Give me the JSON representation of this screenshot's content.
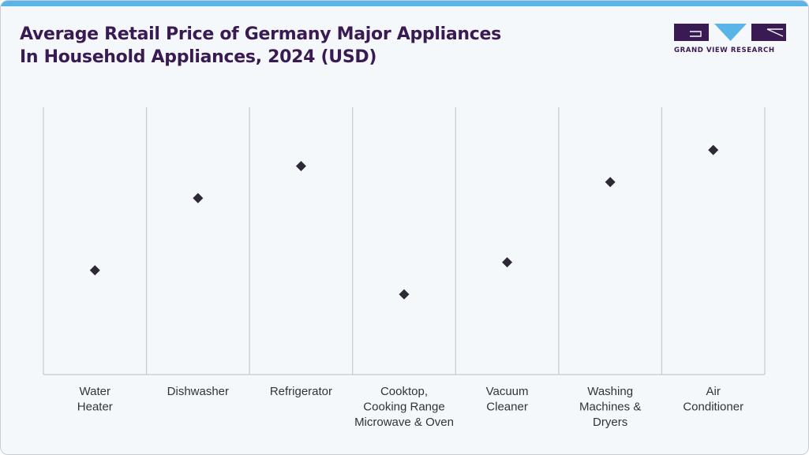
{
  "title_lines": [
    "Average Retail Price of Germany Major Appliances",
    "In Household Appliances, 2024 (USD)"
  ],
  "logo": {
    "text": "GRAND VIEW RESEARCH",
    "primary_color": "#3a1a52",
    "accent_color": "#5bb4e8"
  },
  "chart_data": {
    "type": "scatter",
    "title": "Average Retail Price of Germany Major Appliances In Household Appliances, 2024 (USD)",
    "xlabel": "",
    "ylabel": "",
    "categories": [
      [
        "Water",
        "Heater"
      ],
      [
        "Dishwasher"
      ],
      [
        "Refrigerator"
      ],
      [
        "Cooktop,",
        "Cooking Range",
        "Microwave & Oven"
      ],
      [
        "Vacuum",
        "Cleaner"
      ],
      [
        "Washing",
        "Machines &",
        "Dryers"
      ],
      [
        "Air",
        "Conditioner"
      ]
    ],
    "values": [
      39,
      66,
      78,
      30,
      42,
      72,
      84
    ],
    "ylim": [
      0,
      100
    ],
    "y_axis_visible": false,
    "grid": "vertical category separators",
    "marker": "diamond",
    "marker_color": "#2d2a35",
    "grid_color": "#c8c8c8"
  }
}
